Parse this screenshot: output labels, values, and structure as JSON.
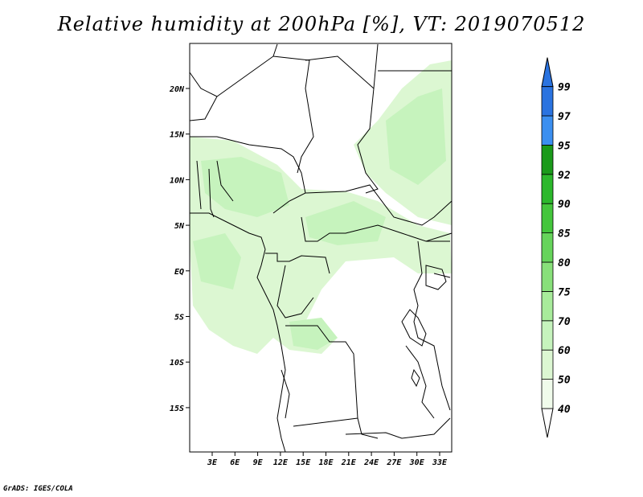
{
  "title": "Relative humidity at 200hPa [%], VT: 2019070512",
  "credit": "GrADS: IGES/COLA",
  "map": {
    "lon_ticks": [
      "3E",
      "6E",
      "9E",
      "12E",
      "15E",
      "18E",
      "21E",
      "24E",
      "27E",
      "30E",
      "33E"
    ],
    "lat_ticks": [
      "20N",
      "15N",
      "10N",
      "5N",
      "EQ",
      "5S",
      "10S",
      "15S"
    ],
    "land_color": "#ffffff",
    "border_color": "#000000"
  },
  "colorbar": {
    "levels": [
      "40",
      "50",
      "60",
      "70",
      "75",
      "80",
      "85",
      "90",
      "92",
      "95",
      "97",
      "99"
    ],
    "colors": [
      "#f0fbeb",
      "#dcf7d2",
      "#c6f3bd",
      "#a8eb9b",
      "#88e07a",
      "#66d45b",
      "#44c63c",
      "#2cb82c",
      "#1a9a1a",
      "#3b8ff0",
      "#2a73e0",
      "#1f5fcc"
    ],
    "top_color": "#2a73e0"
  }
}
